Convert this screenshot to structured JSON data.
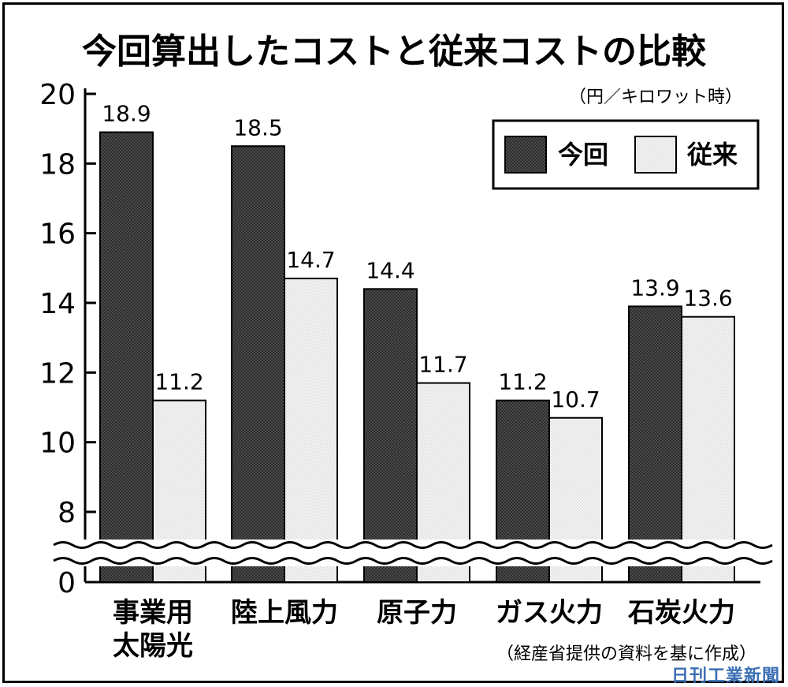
{
  "title": "今回算出したコストと従来コストの比較",
  "unit": "（円／キロワット時）",
  "source": "（経産省提供の資料を基に作成）",
  "watermark": "日刊工業新聞",
  "legend": {
    "position": "top-right",
    "items": [
      "今回",
      "従来"
    ]
  },
  "colors": {
    "current": "#2e2e2e",
    "previous": "#e8e8e8",
    "axis": "#000000"
  },
  "chart_data": {
    "type": "bar",
    "title": "今回算出したコストと従来コストの比較",
    "ylabel": "（円／キロワット時）",
    "y_ticks": [
      0,
      8,
      10,
      12,
      14,
      16,
      18,
      20
    ],
    "y_axis_break": "between 0 and 8",
    "ylim": [
      8,
      20
    ],
    "categories": [
      [
        "事業用",
        "太陽光"
      ],
      [
        "陸上風力"
      ],
      [
        "原子力"
      ],
      [
        "ガス火力"
      ],
      [
        "石炭火力"
      ]
    ],
    "series": [
      {
        "name": "今回",
        "values": [
          18.9,
          18.5,
          14.4,
          11.2,
          13.9
        ]
      },
      {
        "name": "従来",
        "values": [
          11.2,
          14.7,
          11.7,
          10.7,
          13.6
        ]
      }
    ],
    "data_labels": [
      [
        "18.9",
        "18.5",
        "14.4",
        "11.2",
        "13.9"
      ],
      [
        "11.2",
        "14.7",
        "11.7",
        "10.7",
        "13.6"
      ]
    ]
  }
}
